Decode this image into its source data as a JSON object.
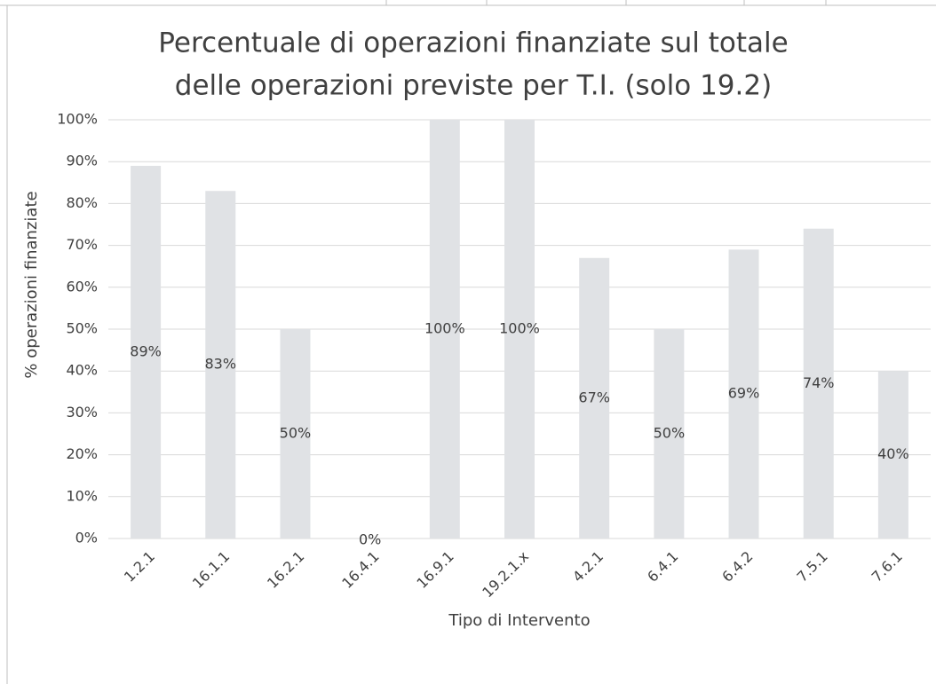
{
  "chart_data": {
    "type": "bar",
    "title": [
      "Percentuale di operazioni finanziate sul totale",
      "delle operazioni previste per T.I. (solo 19.2)"
    ],
    "x_label": "Tipo di Intervento",
    "y_label": "% operazioni finanziate",
    "categories": [
      "1.2.1",
      "16.1.1",
      "16.2.1",
      "16.4.1",
      "16.9.1",
      "19.2.1.x",
      "4.2.1",
      "6.4.1",
      "6.4.2",
      "7.5.1",
      "7.6.1"
    ],
    "values": [
      89,
      83,
      50,
      0,
      100,
      100,
      67,
      50,
      69,
      74,
      40
    ],
    "value_labels": [
      "89%",
      "83%",
      "50%",
      "0%",
      "100%",
      "100%",
      "67%",
      "50%",
      "69%",
      "74%",
      "40%"
    ],
    "color": "#e0e2e5",
    "ylim": [
      0,
      100
    ],
    "yticks": [
      {
        "value": 0,
        "label": "0%"
      },
      {
        "value": 10,
        "label": "10%"
      },
      {
        "value": 20,
        "label": "20%"
      },
      {
        "value": 30,
        "label": "30%"
      },
      {
        "value": 40,
        "label": "40%"
      },
      {
        "value": 50,
        "label": "50%"
      },
      {
        "value": 60,
        "label": "60%"
      },
      {
        "value": 70,
        "label": "70%"
      },
      {
        "value": 80,
        "label": "80%"
      },
      {
        "value": 90,
        "label": "90%"
      },
      {
        "value": 100,
        "label": "100%"
      }
    ],
    "grid": true
  }
}
